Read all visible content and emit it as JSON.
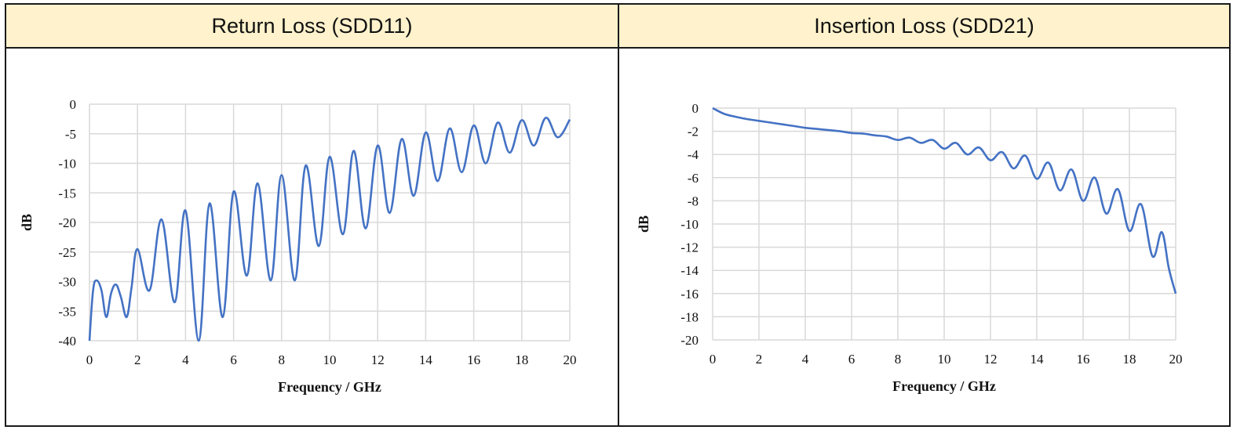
{
  "header": {
    "left_title": "Return Loss (SDD11)",
    "right_title": "Insertion Loss (SDD21)"
  },
  "colors": {
    "header_bg": "#fff2cc",
    "series": "#4472c4",
    "grid": "#d9d9d9"
  },
  "chart_data": [
    {
      "type": "line",
      "title": "Return Loss (SDD11)",
      "xlabel": "Frequency / GHz",
      "ylabel": "dB",
      "xlim": [
        0,
        20
      ],
      "ylim": [
        -40,
        0
      ],
      "x_ticks": [
        "0",
        "2",
        "4",
        "6",
        "8",
        "10",
        "12",
        "14",
        "16",
        "18",
        "20"
      ],
      "y_ticks": [
        "0",
        "-5",
        "-10",
        "-15",
        "-20",
        "-25",
        "-30",
        "-35",
        "-40"
      ],
      "grid": true,
      "series": [
        {
          "x": [
            0,
            0.15,
            0.3,
            0.5,
            0.7,
            0.9,
            1.1,
            1.3,
            1.55,
            1.75,
            2.0,
            2.5,
            3.0,
            3.55,
            4.0,
            4.55,
            5.0,
            5.55,
            6.0,
            6.55,
            7.0,
            7.55,
            8.0,
            8.55,
            9.0,
            9.55,
            10.0,
            10.55,
            11.0,
            11.5,
            12.0,
            12.5,
            13.0,
            13.5,
            14.0,
            14.5,
            15.0,
            15.5,
            16.0,
            16.5,
            17.0,
            17.5,
            18.0,
            18.5,
            19.0,
            19.5,
            20.0
          ],
          "y": [
            -40,
            -31.5,
            -29.8,
            -31.5,
            -36,
            -32,
            -30.5,
            -32.5,
            -36,
            -31,
            -24.5,
            -31.5,
            -19.5,
            -33.5,
            -18,
            -40,
            -16.8,
            -36,
            -14.8,
            -29,
            -13.4,
            -29.8,
            -12,
            -29.8,
            -10.4,
            -24,
            -8.9,
            -22,
            -7.9,
            -21,
            -7.0,
            -18.4,
            -5.9,
            -15.5,
            -4.8,
            -13,
            -4.1,
            -11.5,
            -3.6,
            -10,
            -3.1,
            -8.2,
            -2.7,
            -7,
            -2.3,
            -5.6,
            -2.6
          ]
        }
      ]
    },
    {
      "type": "line",
      "title": "Insertion Loss (SDD21)",
      "xlabel": "Frequency / GHz",
      "ylabel": "dB",
      "xlim": [
        0,
        20
      ],
      "ylim": [
        -20,
        0
      ],
      "x_ticks": [
        "0",
        "2",
        "4",
        "6",
        "8",
        "10",
        "12",
        "14",
        "16",
        "18",
        "20"
      ],
      "y_ticks": [
        "0",
        "-2",
        "-4",
        "-6",
        "-8",
        "-10",
        "-12",
        "-14",
        "-16",
        "-18",
        "-20"
      ],
      "grid": true,
      "series": [
        {
          "x": [
            0,
            0.5,
            1,
            1.5,
            2,
            2.5,
            3,
            3.5,
            4,
            4.5,
            5,
            5.5,
            6,
            6.5,
            7,
            7.5,
            8,
            8.5,
            9,
            9.5,
            10,
            10.5,
            11,
            11.5,
            12,
            12.5,
            13,
            13.5,
            14,
            14.5,
            15,
            15.5,
            16,
            16.5,
            17,
            17.5,
            18,
            18.5,
            19,
            19.4,
            19.7,
            20
          ],
          "y": [
            0,
            -0.5,
            -0.75,
            -0.95,
            -1.1,
            -1.25,
            -1.4,
            -1.55,
            -1.7,
            -1.8,
            -1.9,
            -2.0,
            -2.15,
            -2.2,
            -2.35,
            -2.45,
            -2.75,
            -2.55,
            -3.0,
            -2.75,
            -3.5,
            -3.0,
            -4.0,
            -3.4,
            -4.5,
            -3.8,
            -5.2,
            -4.1,
            -6.1,
            -4.7,
            -7.1,
            -5.3,
            -8.0,
            -6.0,
            -9.1,
            -7.0,
            -10.6,
            -8.3,
            -12.8,
            -10.7,
            -13.8,
            -16.0
          ]
        }
      ]
    }
  ]
}
